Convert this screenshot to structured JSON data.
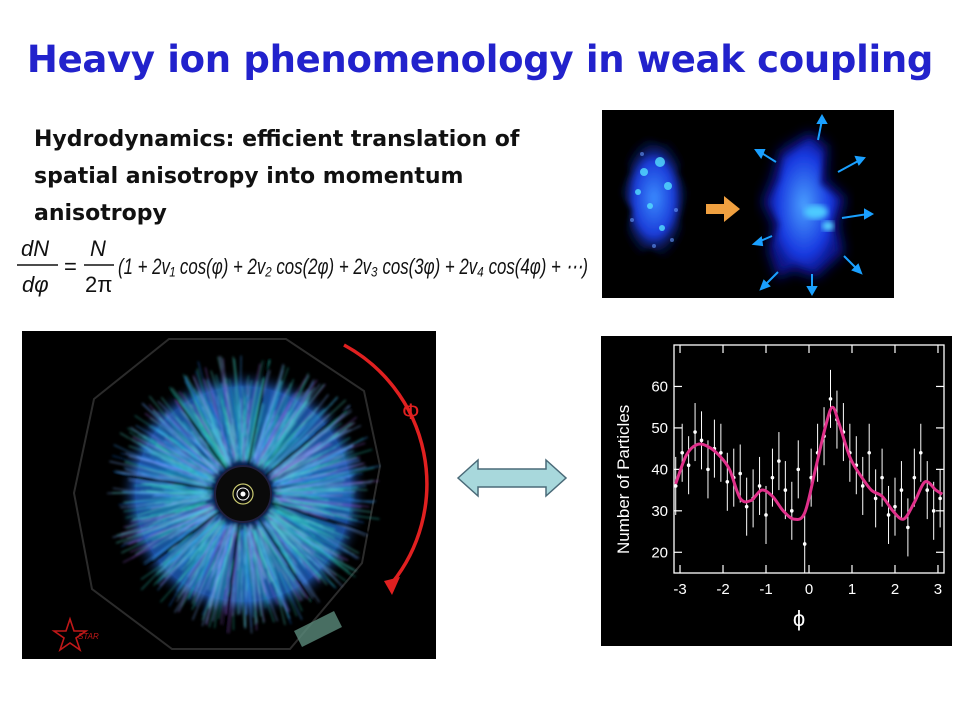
{
  "slide": {
    "title": "Heavy ion phenomenology in weak coupling",
    "body_line1": "Hydrodynamics: efficient translation of",
    "body_line2": "spatial anisotropy into momentum",
    "body_line3": "anisotropy",
    "equation": {
      "lhs_num": "dN",
      "lhs_den": "dφ",
      "equals": "=",
      "rhs_num": "N",
      "rhs_den": "2π",
      "expr": "(1 + 2v₁ cos(φ) + 2v₂ cos(2φ) + 2v₃ cos(3φ) + 2v₄ cos(4φ) + ⋯)"
    }
  },
  "event_display": {
    "phi_label": "Φ",
    "logo_text": "STAR"
  },
  "colors": {
    "title": "#2222cc",
    "arrow_red": "#e02020",
    "curve": "#e0308a",
    "double_arrow": "#a8d8dc"
  },
  "chart_data": {
    "type": "scatter",
    "title": "",
    "xlabel": "ϕ",
    "ylabel": "Number of Particles",
    "xlim": [
      -3.14,
      3.14
    ],
    "ylim": [
      15,
      70
    ],
    "xticks": [
      -3,
      -2,
      -1,
      0,
      1,
      2,
      3
    ],
    "xtick_labels": [
      "-3",
      "-2",
      "-1",
      "0",
      "1",
      "2",
      "3"
    ],
    "yticks": [
      20,
      30,
      40,
      50,
      60
    ],
    "ytick_labels": [
      "20",
      "30",
      "40",
      "50",
      "60"
    ],
    "grid": false,
    "series": [
      {
        "kind": "points",
        "x": [
          -3.1,
          -2.95,
          -2.8,
          -2.65,
          -2.5,
          -2.35,
          -2.2,
          -2.05,
          -1.9,
          -1.75,
          -1.6,
          -1.45,
          -1.3,
          -1.15,
          -1.0,
          -0.85,
          -0.7,
          -0.55,
          -0.4,
          -0.25,
          -0.1,
          0.05,
          0.2,
          0.35,
          0.5,
          0.65,
          0.8,
          0.95,
          1.1,
          1.25,
          1.4,
          1.55,
          1.7,
          1.85,
          2.0,
          2.15,
          2.3,
          2.45,
          2.6,
          2.75,
          2.9,
          3.05
        ],
        "y": [
          36,
          44,
          41,
          49,
          47,
          40,
          45,
          44,
          37,
          38,
          39,
          31,
          33,
          36,
          29,
          38,
          42,
          35,
          30,
          40,
          22,
          38,
          44,
          48,
          57,
          52,
          49,
          44,
          41,
          36,
          44,
          33,
          38,
          29,
          31,
          35,
          26,
          38,
          44,
          35,
          30,
          33
        ],
        "err": [
          7,
          7,
          7,
          7,
          7,
          7,
          7,
          7,
          7,
          7,
          7,
          7,
          7,
          7,
          7,
          7,
          7,
          7,
          7,
          7,
          7,
          7,
          7,
          7,
          7,
          7,
          7,
          7,
          7,
          7,
          7,
          7,
          7,
          7,
          7,
          7,
          7,
          7,
          7,
          7,
          7,
          7
        ]
      },
      {
        "kind": "curve",
        "x": [
          -3.1,
          -2.85,
          -2.6,
          -2.35,
          -2.1,
          -1.85,
          -1.6,
          -1.35,
          -1.1,
          -0.85,
          -0.6,
          -0.35,
          -0.1,
          0.15,
          0.4,
          0.55,
          0.7,
          0.95,
          1.2,
          1.45,
          1.7,
          1.95,
          2.2,
          2.45,
          2.7,
          2.95,
          3.1
        ],
        "y": [
          36.5,
          43.5,
          46,
          45.5,
          43.5,
          40,
          33,
          32.5,
          35,
          33.5,
          30,
          28,
          29.5,
          40,
          51,
          55,
          51,
          43,
          38.5,
          35,
          33.5,
          30,
          28,
          32,
          37,
          35,
          34
        ]
      }
    ]
  }
}
